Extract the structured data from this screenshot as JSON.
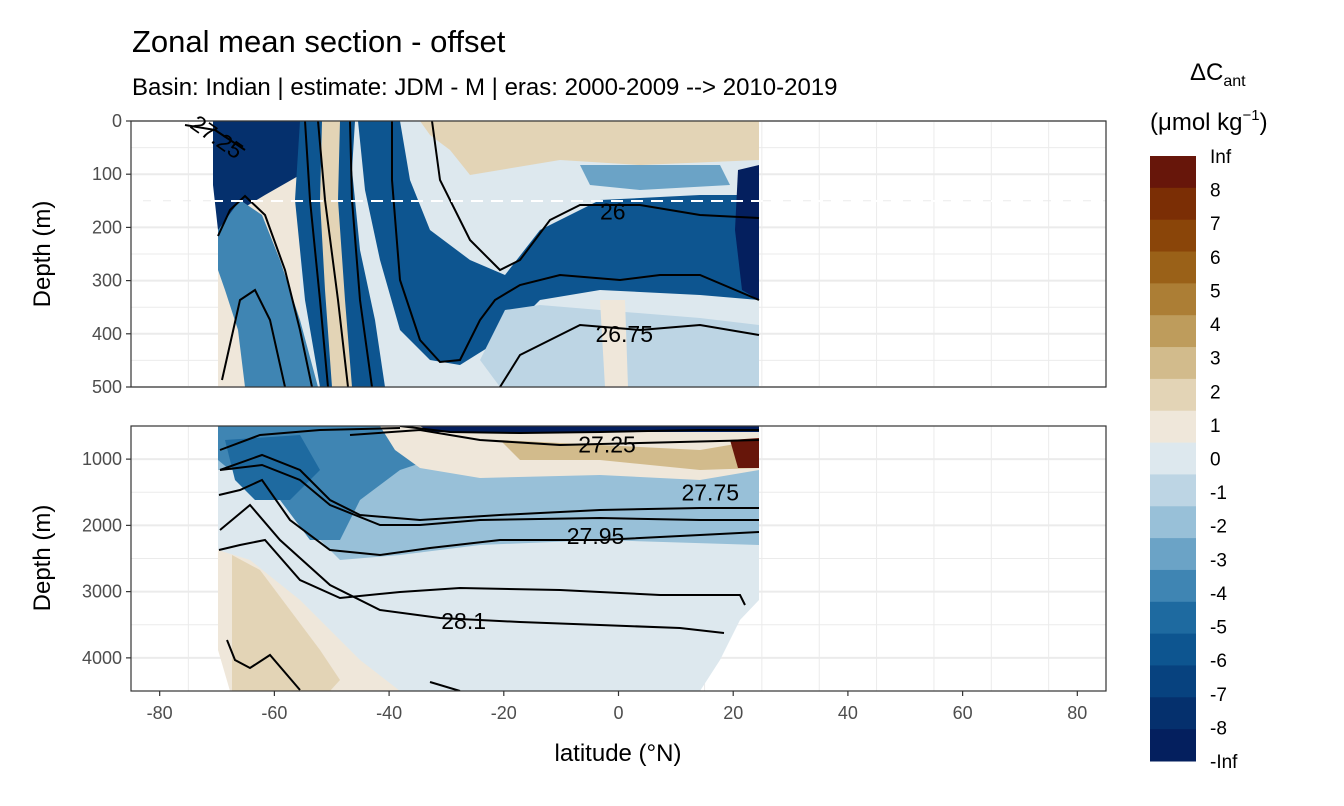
{
  "title": "Zonal mean section - offset",
  "subtitle": "Basin: Indian | estimate: JDM - M | eras: 2000-2009 --> 2010-2019",
  "chart_data": {
    "type": "contour",
    "xlabel": "latitude (°N)",
    "ylabel": "Depth (m)",
    "xlim": [
      -85,
      85
    ],
    "x_ticks": [
      -80,
      -60,
      -40,
      -20,
      0,
      20,
      40,
      60,
      80
    ],
    "data_lat_range": [
      -70,
      25
    ],
    "panels": [
      {
        "name": "upper",
        "ylim": [
          0,
          500
        ],
        "y_ticks": [
          0,
          100,
          200,
          300,
          400,
          500
        ],
        "reference_depth_dashed": 150,
        "density_contour_labels": [
          {
            "label": "27.25",
            "lat": -70,
            "depth": 30
          },
          {
            "label": "26",
            "lat": -1,
            "depth": 170
          },
          {
            "label": "26.75",
            "lat": 1,
            "depth": 400
          }
        ]
      },
      {
        "name": "lower",
        "ylim": [
          500,
          4500
        ],
        "y_ticks": [
          1000,
          2000,
          3000,
          4000
        ],
        "density_contour_labels": [
          {
            "label": "27.25",
            "lat": -2,
            "depth": 780
          },
          {
            "label": "27.75",
            "lat": 16,
            "depth": 1500
          },
          {
            "label": "27.95",
            "lat": -4,
            "depth": 2160
          },
          {
            "label": "28.1",
            "lat": -27,
            "depth": 3440
          }
        ]
      }
    ],
    "legend": {
      "title_main": "ΔC",
      "title_sub": "ant",
      "units_pre": "(μmol kg",
      "units_sup": "−1",
      "units_post": ")",
      "breaks": [
        "Inf",
        "8",
        "7",
        "6",
        "5",
        "4",
        "3",
        "2",
        "1",
        "0",
        "-1",
        "-2",
        "-3",
        "-4",
        "-5",
        "-6",
        "-7",
        "-8",
        "-Inf"
      ],
      "colors": [
        "#67160a",
        "#7b2e05",
        "#8a4509",
        "#9a6118",
        "#ac7e35",
        "#be9c5c",
        "#d2bb8c",
        "#e3d4b6",
        "#efe7da",
        "#dde8ee",
        "#bdd5e4",
        "#98c0d8",
        "#6ba3c6",
        "#3f85b3",
        "#1e6aa0",
        "#0d5590",
        "#07427f",
        "#05306d",
        "#041f5e"
      ]
    }
  }
}
